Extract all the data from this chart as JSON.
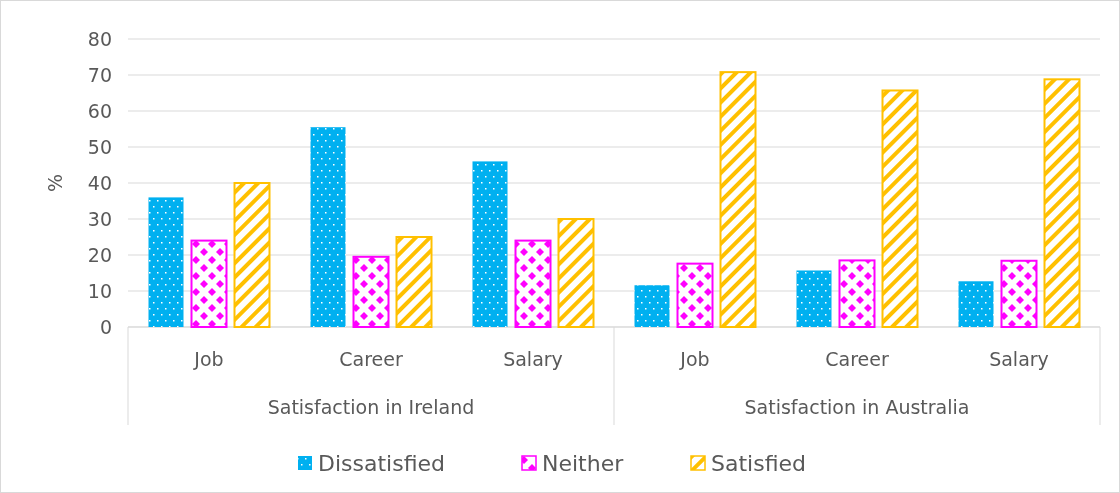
{
  "chart_data": {
    "type": "bar",
    "ylabel": "%",
    "categories": [
      "Job",
      "Career",
      "Salary",
      "Job",
      "Career",
      "Salary"
    ],
    "annotations": [
      "Satisfaction in Ireland",
      "Satisfaction in Australia"
    ],
    "series": [
      {
        "name": "Dissatisfied",
        "color": "#00b0f0",
        "values": [
          36,
          55.5,
          46,
          11.6,
          15.7,
          12.7
        ]
      },
      {
        "name": "Neither",
        "color": "#ff00ff",
        "values": [
          24,
          19.5,
          24,
          17.6,
          18.5,
          18.4
        ]
      },
      {
        "name": "Satisfied",
        "color": "#ffc000",
        "values": [
          40,
          25,
          30,
          70.8,
          65.7,
          68.8
        ]
      }
    ],
    "ylim": [
      0,
      80
    ],
    "yticks": [
      0,
      10,
      20,
      30,
      40,
      50,
      60,
      70,
      80
    ],
    "grid": "y",
    "legend": "bottom"
  }
}
